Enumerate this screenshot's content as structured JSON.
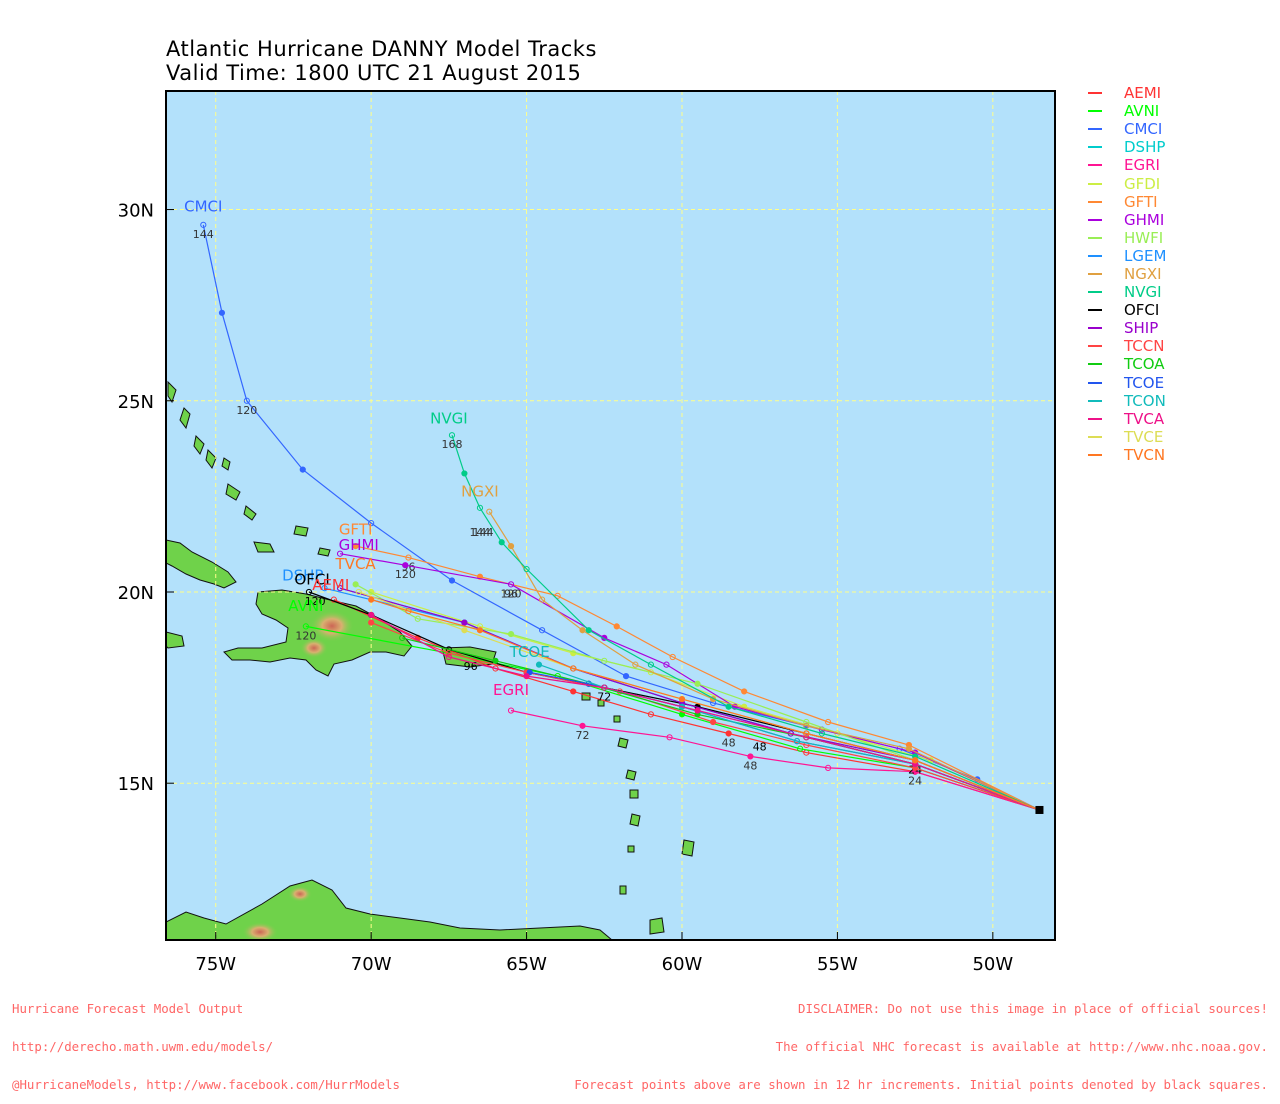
{
  "title": {
    "line1": "Atlantic Hurricane DANNY Model Tracks",
    "line2": "Valid Time: 1800 UTC 21 August 2015"
  },
  "axes": {
    "lat_labels": [
      "30N",
      "25N",
      "20N",
      "15N"
    ],
    "lat_values": [
      30,
      25,
      20,
      15
    ],
    "lon_labels": [
      "75W",
      "70W",
      "65W",
      "60W",
      "55W",
      "50W"
    ],
    "lon_values": [
      -75,
      -70,
      -65,
      -60,
      -55,
      -50
    ],
    "lon_range": [
      -76.6,
      -48
    ],
    "lat_range": [
      10.9,
      33.1
    ]
  },
  "colors": {
    "ocean": "#b3e1fb",
    "land": "#6fd24a",
    "grid": "#ffff8a",
    "footer": "#ff6666"
  },
  "initial_position": {
    "lon": -48.5,
    "lat": 14.3
  },
  "models": [
    {
      "name": "AEMI",
      "color": "#ff3333",
      "track": [
        [
          -48.5,
          14.3
        ],
        [
          -52.5,
          15.3
        ],
        [
          -56.0,
          15.8
        ],
        [
          -58.5,
          16.3
        ],
        [
          -61.0,
          16.8
        ],
        [
          -63.5,
          17.4
        ],
        [
          -66.0,
          18.0
        ],
        [
          -68.5,
          18.8
        ],
        [
          -71.2,
          19.8
        ]
      ],
      "labels": [
        [
          -52.5,
          15.3,
          "24"
        ],
        [
          -58.5,
          16.3,
          "48"
        ]
      ]
    },
    {
      "name": "AVNI",
      "color": "#00ff00",
      "track": [
        [
          -48.5,
          14.3
        ],
        [
          -52.5,
          15.4
        ],
        [
          -56.2,
          15.9
        ],
        [
          -60.0,
          16.8
        ],
        [
          -64.0,
          17.8
        ],
        [
          -67.5,
          18.4
        ],
        [
          -72.1,
          19.1
        ]
      ],
      "labels": [
        [
          -72.1,
          19.1,
          "120"
        ]
      ]
    },
    {
      "name": "CMCI",
      "color": "#3366ff",
      "track": [
        [
          -48.5,
          14.3
        ],
        [
          -50.5,
          15.1
        ],
        [
          -53.0,
          15.9
        ],
        [
          -56.0,
          16.5
        ],
        [
          -59.0,
          17.1
        ],
        [
          -61.8,
          17.8
        ],
        [
          -64.5,
          19.0
        ],
        [
          -67.4,
          20.3
        ],
        [
          -70.0,
          21.8
        ],
        [
          -72.2,
          23.2
        ],
        [
          -74.0,
          25.0
        ],
        [
          -74.8,
          27.3
        ],
        [
          -75.4,
          29.6
        ]
      ],
      "labels": [
        [
          -74.0,
          25.0,
          "120"
        ],
        [
          -75.4,
          29.6,
          "144"
        ]
      ]
    },
    {
      "name": "DSHP",
      "color": "#00cccc",
      "track": [
        [
          -48.5,
          14.3
        ],
        [
          -52.5,
          15.5
        ],
        [
          -56.5,
          16.3
        ],
        [
          -60.0,
          17.1
        ],
        [
          -63.5,
          18.0
        ],
        [
          -67.0,
          19.2
        ],
        [
          -71.0,
          20.1
        ]
      ],
      "labels": []
    },
    {
      "name": "EGRI",
      "color": "#ff1493",
      "track": [
        [
          -48.5,
          14.3
        ],
        [
          -52.5,
          15.3
        ],
        [
          -55.3,
          15.4
        ],
        [
          -57.8,
          15.7
        ],
        [
          -60.4,
          16.2
        ],
        [
          -63.2,
          16.5
        ],
        [
          -65.5,
          16.9
        ]
      ],
      "labels": [
        [
          -57.8,
          15.7,
          "48"
        ],
        [
          -63.2,
          16.5,
          "72"
        ]
      ]
    },
    {
      "name": "GFDI",
      "color": "#ccee44",
      "track": [
        [
          -48.5,
          14.3
        ],
        [
          -52.0,
          15.6
        ],
        [
          -55.0,
          16.3
        ],
        [
          -58.0,
          17.0
        ],
        [
          -61.0,
          17.9
        ],
        [
          -63.5,
          18.4
        ],
        [
          -66.5,
          19.1
        ],
        [
          -70.0,
          20.0
        ]
      ],
      "labels": []
    },
    {
      "name": "GFTI",
      "color": "#ff8833",
      "track": [
        [
          -48.5,
          14.3
        ],
        [
          -52.7,
          16.0
        ],
        [
          -55.3,
          16.6
        ],
        [
          -58.0,
          17.4
        ],
        [
          -60.3,
          18.3
        ],
        [
          -62.1,
          19.1
        ],
        [
          -64.0,
          19.9
        ],
        [
          -66.5,
          20.4
        ],
        [
          -68.8,
          20.9
        ],
        [
          -70.5,
          21.2
        ]
      ],
      "labels": [
        [
          -68.8,
          20.9,
          "96"
        ]
      ]
    },
    {
      "name": "GHMI",
      "color": "#aa00dd",
      "track": [
        [
          -48.5,
          14.3
        ],
        [
          -52.5,
          15.8
        ],
        [
          -55.5,
          16.4
        ],
        [
          -58.3,
          17.0
        ],
        [
          -60.5,
          18.1
        ],
        [
          -62.5,
          18.8
        ],
        [
          -65.5,
          20.2
        ],
        [
          -68.9,
          20.7
        ],
        [
          -71.0,
          21.0
        ]
      ],
      "labels": [
        [
          -65.5,
          20.2,
          "96"
        ],
        [
          -68.9,
          20.7,
          "120"
        ]
      ]
    },
    {
      "name": "HWFI",
      "color": "#99ee55",
      "track": [
        [
          -48.5,
          14.3
        ],
        [
          -52.5,
          15.6
        ],
        [
          -56.0,
          16.6
        ],
        [
          -59.5,
          17.6
        ],
        [
          -62.5,
          18.2
        ],
        [
          -65.5,
          18.9
        ],
        [
          -68.5,
          19.3
        ],
        [
          -70.5,
          20.2
        ]
      ],
      "labels": []
    },
    {
      "name": "LGEM",
      "color": "#1e90ff",
      "track": [
        [
          -48.5,
          14.3
        ],
        [
          -52.5,
          15.5
        ],
        [
          -56.5,
          16.3
        ],
        [
          -60.0,
          17.1
        ],
        [
          -63.5,
          18.0
        ],
        [
          -67.0,
          19.2
        ],
        [
          -71.5,
          20.1
        ]
      ],
      "labels": []
    },
    {
      "name": "NGXI",
      "color": "#e0a040",
      "track": [
        [
          -48.5,
          14.3
        ],
        [
          -52.7,
          15.9
        ],
        [
          -56.0,
          16.5
        ],
        [
          -59.0,
          17.2
        ],
        [
          -61.5,
          18.1
        ],
        [
          -63.2,
          19.0
        ],
        [
          -64.5,
          19.8
        ],
        [
          -65.5,
          21.2
        ],
        [
          -66.2,
          22.1
        ]
      ],
      "labels": [
        [
          -65.5,
          20.2,
          "120"
        ],
        [
          -66.4,
          21.8,
          "144"
        ]
      ]
    },
    {
      "name": "NVGI",
      "color": "#00cc88",
      "track": [
        [
          -48.5,
          14.3
        ],
        [
          -52.5,
          15.7
        ],
        [
          -55.5,
          16.3
        ],
        [
          -58.5,
          17.0
        ],
        [
          -61.0,
          18.1
        ],
        [
          -63.0,
          19.0
        ],
        [
          -65.0,
          20.6
        ],
        [
          -65.8,
          21.3
        ],
        [
          -66.5,
          22.2
        ],
        [
          -67.0,
          23.1
        ],
        [
          -67.4,
          24.1
        ]
      ],
      "labels": [
        [
          -66.5,
          21.8,
          "144"
        ],
        [
          -67.4,
          24.1,
          "168"
        ]
      ]
    },
    {
      "name": "OFCI",
      "color": "#000000",
      "track": [
        [
          -48.5,
          14.3
        ],
        [
          -52.5,
          15.6
        ],
        [
          -56.0,
          16.3
        ],
        [
          -59.5,
          17.0
        ],
        [
          -62.5,
          17.5
        ],
        [
          -65.0,
          17.9
        ],
        [
          -67.5,
          18.5
        ],
        [
          -70.0,
          19.4
        ],
        [
          -72.0,
          20.0
        ]
      ],
      "labels": [
        [
          -52.5,
          15.6,
          "24"
        ],
        [
          -57.5,
          16.2,
          "48"
        ],
        [
          -62.5,
          17.5,
          "72"
        ],
        [
          -66.8,
          18.3,
          "96"
        ],
        [
          -71.8,
          20.0,
          "120"
        ]
      ]
    },
    {
      "name": "SHIP",
      "color": "#9900cc",
      "track": [
        [
          -48.5,
          14.3
        ],
        [
          -52.5,
          15.6
        ],
        [
          -56.5,
          16.3
        ],
        [
          -60.0,
          17.1
        ],
        [
          -63.5,
          18.0
        ],
        [
          -67.0,
          19.2
        ],
        [
          -71.0,
          20.1
        ]
      ],
      "labels": []
    },
    {
      "name": "TCCN",
      "color": "#ff4444",
      "track": [
        [
          -48.5,
          14.3
        ],
        [
          -52.5,
          15.4
        ],
        [
          -56.0,
          16.0
        ],
        [
          -59.0,
          16.6
        ],
        [
          -62.0,
          17.4
        ],
        [
          -65.0,
          17.9
        ],
        [
          -67.5,
          18.4
        ],
        [
          -70.0,
          19.2
        ]
      ],
      "labels": []
    },
    {
      "name": "TCOA",
      "color": "#11cc11",
      "track": [
        [
          -48.5,
          14.3
        ],
        [
          -52.5,
          15.5
        ],
        [
          -56.0,
          16.2
        ],
        [
          -59.5,
          16.8
        ],
        [
          -63.0,
          17.6
        ],
        [
          -66.0,
          18.2
        ],
        [
          -69.0,
          18.8
        ]
      ],
      "labels": []
    },
    {
      "name": "TCOE",
      "color": "#2255ee",
      "track": [
        [
          -48.5,
          14.3
        ],
        [
          -52.5,
          15.5
        ],
        [
          -56.3,
          16.1
        ],
        [
          -60.0,
          17.0
        ],
        [
          -63.0,
          17.6
        ],
        [
          -64.9,
          17.9
        ]
      ],
      "labels": []
    },
    {
      "name": "TCON",
      "color": "#11bbbb",
      "track": [
        [
          -48.5,
          14.3
        ],
        [
          -52.5,
          15.5
        ],
        [
          -56.3,
          16.1
        ],
        [
          -60.0,
          17.0
        ],
        [
          -62.5,
          17.5
        ],
        [
          -64.6,
          18.1
        ]
      ],
      "labels": []
    },
    {
      "name": "TVCA",
      "color": "#ee1188",
      "track": [
        [
          -48.5,
          14.3
        ],
        [
          -52.5,
          15.5
        ],
        [
          -56.0,
          16.2
        ],
        [
          -59.5,
          16.9
        ],
        [
          -62.5,
          17.5
        ],
        [
          -65.0,
          17.8
        ],
        [
          -67.5,
          18.3
        ],
        [
          -70.0,
          19.4
        ]
      ],
      "labels": []
    },
    {
      "name": "TVCE",
      "color": "#dddd55",
      "track": [
        [
          -48.5,
          14.3
        ],
        [
          -52.5,
          15.6
        ],
        [
          -56.0,
          16.3
        ],
        [
          -60.0,
          17.2
        ],
        [
          -63.5,
          18.0
        ],
        [
          -67.0,
          19.0
        ],
        [
          -70.4,
          20.0
        ]
      ],
      "labels": []
    },
    {
      "name": "TVCN",
      "color": "#ff7722",
      "track": [
        [
          -48.5,
          14.3
        ],
        [
          -52.5,
          15.6
        ],
        [
          -56.0,
          16.3
        ],
        [
          -60.0,
          17.2
        ],
        [
          -63.5,
          18.0
        ],
        [
          -66.5,
          19.0
        ],
        [
          -68.8,
          19.5
        ],
        [
          -70.0,
          19.8
        ]
      ],
      "labels": []
    }
  ],
  "track_labels": [
    {
      "text": "CMCI",
      "lon": -75.4,
      "lat": 29.95,
      "model": "CMCI"
    },
    {
      "text": "NVGI",
      "lon": -67.5,
      "lat": 24.4,
      "model": "NVGI"
    },
    {
      "text": "NGXI",
      "lon": -66.5,
      "lat": 22.5,
      "model": "NGXI"
    },
    {
      "text": "GFTI",
      "lon": -70.5,
      "lat": 21.5,
      "model": "GFTI"
    },
    {
      "text": "GHMI",
      "lon": -70.4,
      "lat": 21.1,
      "model": "GHMI"
    },
    {
      "text": "TVCA",
      "lon": -70.5,
      "lat": 20.6,
      "model": "TVCN"
    },
    {
      "text": "DSHP",
      "lon": -72.2,
      "lat": 20.3,
      "model": "LGEM"
    },
    {
      "text": "OFCI",
      "lon": -71.9,
      "lat": 20.2,
      "model": "OFCI"
    },
    {
      "text": "AEMI",
      "lon": -71.3,
      "lat": 20.05,
      "model": "AEMI"
    },
    {
      "text": "AVNI",
      "lon": -72.1,
      "lat": 19.5,
      "model": "AVNI"
    },
    {
      "text": "TCOE",
      "lon": -64.9,
      "lat": 18.3,
      "model": "TCON"
    },
    {
      "text": "EGRI",
      "lon": -65.5,
      "lat": 17.3,
      "model": "EGRI"
    }
  ],
  "footer": {
    "left": [
      "Hurricane Forecast Model Output",
      "http://derecho.math.uwm.edu/models/",
      "@HurricaneModels, http://www.facebook.com/HurrModels"
    ],
    "right": [
      "DISCLAIMER: Do not use this image in place of official sources!",
      "The official NHC forecast is available at http://www.nhc.noaa.gov.",
      "Forecast points above are shown in 12 hr increments. Initial points denoted by black squares."
    ]
  }
}
